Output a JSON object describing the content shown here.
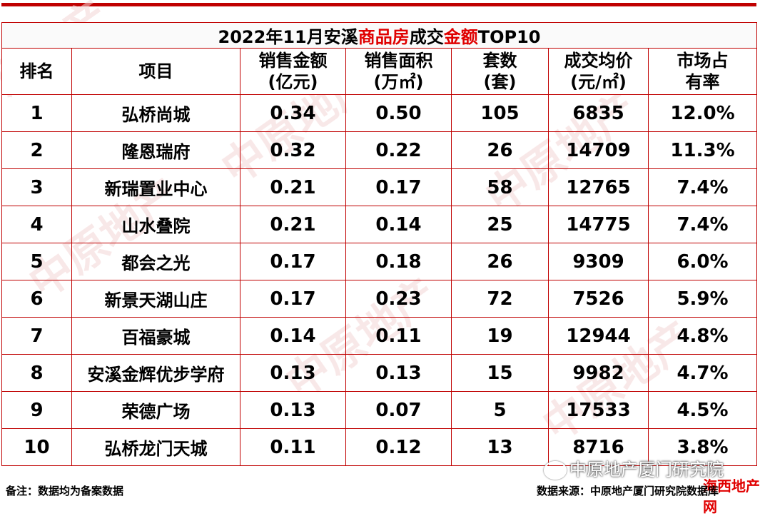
{
  "title": {
    "prefix": "2022年11月安溪",
    "highlight1": "商品房",
    "middle": "成交",
    "highlight2": "金额",
    "suffix": "TOP10"
  },
  "headers": {
    "rank": "排名",
    "project": "项目",
    "sales_amount": [
      "销售金额",
      "(亿元)"
    ],
    "sales_area": [
      "销售面积",
      "(万㎡)"
    ],
    "units": [
      "套数",
      "(套)"
    ],
    "avg_price": [
      "成交均价",
      "(元/㎡)"
    ],
    "market_share": [
      "市场占",
      "有率"
    ]
  },
  "rows": [
    {
      "rank": "1",
      "project": "弘桥尚城",
      "amount": "0.34",
      "area": "0.50",
      "units": "105",
      "price": "6835",
      "share": "12.0%"
    },
    {
      "rank": "2",
      "project": "隆恩瑞府",
      "amount": "0.32",
      "area": "0.22",
      "units": "26",
      "price": "14709",
      "share": "11.3%"
    },
    {
      "rank": "3",
      "project": "新瑞置业中心",
      "amount": "0.21",
      "area": "0.17",
      "units": "58",
      "price": "12765",
      "share": "7.4%"
    },
    {
      "rank": "4",
      "project": "山水叠院",
      "amount": "0.21",
      "area": "0.14",
      "units": "25",
      "price": "14775",
      "share": "7.4%"
    },
    {
      "rank": "5",
      "project": "都会之光",
      "amount": "0.17",
      "area": "0.18",
      "units": "26",
      "price": "9309",
      "share": "6.0%"
    },
    {
      "rank": "6",
      "project": "新景天湖山庄",
      "amount": "0.17",
      "area": "0.23",
      "units": "72",
      "price": "7526",
      "share": "5.9%"
    },
    {
      "rank": "7",
      "project": "百福豪城",
      "amount": "0.14",
      "area": "0.11",
      "units": "19",
      "price": "12944",
      "share": "4.8%"
    },
    {
      "rank": "8",
      "project": "安溪金辉优步学府",
      "amount": "0.13",
      "area": "0.13",
      "units": "15",
      "price": "9982",
      "share": "4.7%"
    },
    {
      "rank": "9",
      "project": "荣德广场",
      "amount": "0.13",
      "area": "0.07",
      "units": "5",
      "price": "17533",
      "share": "4.5%"
    },
    {
      "rank": "10",
      "project": "弘桥龙门天城",
      "amount": "0.11",
      "area": "0.12",
      "units": "13",
      "price": "8716",
      "share": "3.8%"
    }
  ],
  "footer": {
    "note": "备注：数据均为备案数据",
    "source": "数据来源：中原地产厦门研究院数据库"
  },
  "overlay": {
    "wechat": "中原地产厦门研究院",
    "stamp": "海西地产网"
  },
  "colors": {
    "border": "#c00000",
    "highlight": "#e00000"
  }
}
